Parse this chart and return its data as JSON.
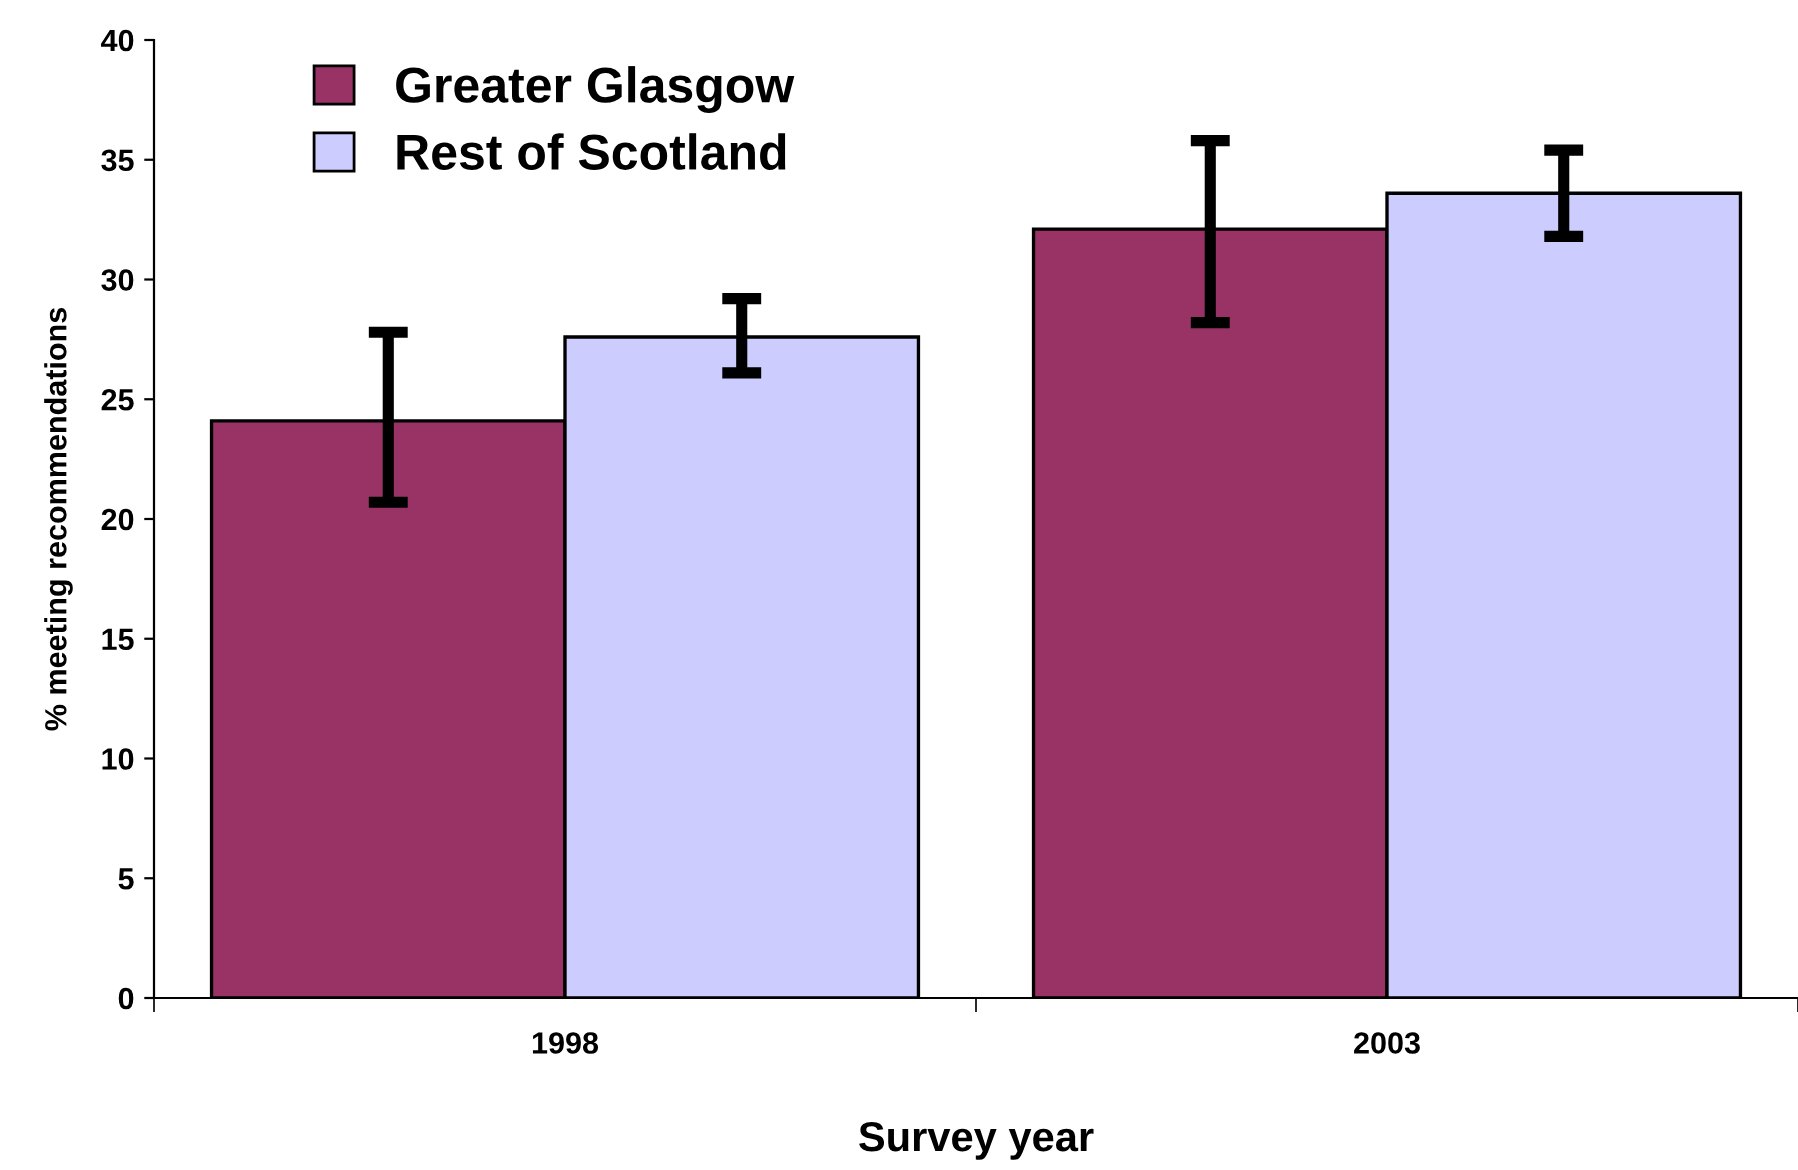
{
  "chart_data": {
    "type": "bar",
    "xlabel": "Survey year",
    "ylabel": "% meeting recommendations",
    "categories": [
      "1998",
      "2003"
    ],
    "series": [
      {
        "name": "Greater Glasgow",
        "color": "#993366",
        "values": [
          24.1,
          32.1
        ],
        "errors": [
          [
            20.7,
            27.8
          ],
          [
            28.2,
            35.8
          ]
        ]
      },
      {
        "name": "Rest of Scotland",
        "color": "#ccccff",
        "values": [
          27.6,
          33.6
        ],
        "errors": [
          [
            26.1,
            29.2
          ],
          [
            31.8,
            35.4
          ]
        ]
      }
    ],
    "ylim": [
      0,
      40
    ],
    "yticks": [
      0,
      5,
      10,
      15,
      20,
      25,
      30,
      35,
      40
    ],
    "grid": false,
    "legend": "top left"
  }
}
